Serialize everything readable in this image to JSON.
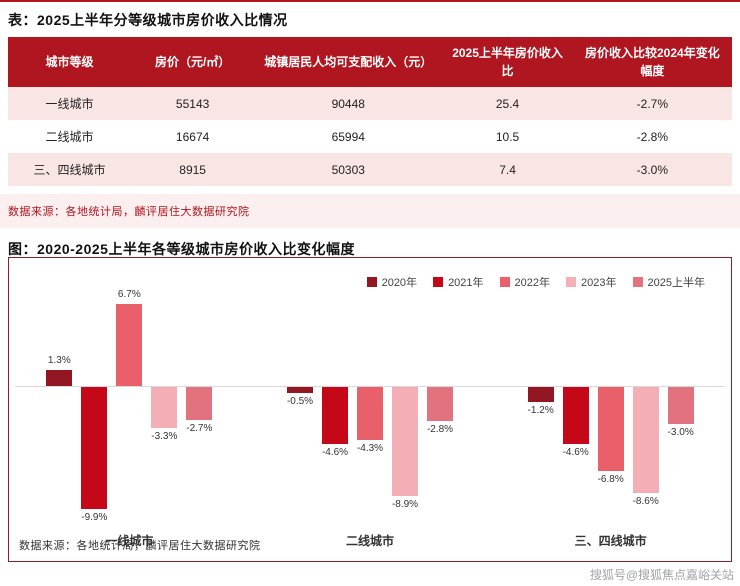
{
  "table_section": {
    "title": "表：2025上半年分等级城市房价收入比情况",
    "columns": [
      "城市等级",
      "房价（元/㎡）",
      "城镇居民人均可支配收入（元）",
      "2025上半年房价收入比",
      "房价收入比较2024年变化幅度"
    ],
    "rows": [
      [
        "一线城市",
        "55143",
        "90448",
        "25.4",
        "-2.7%"
      ],
      [
        "二线城市",
        "16674",
        "65994",
        "10.5",
        "-2.8%"
      ],
      [
        "三、四线城市",
        "8915",
        "50303",
        "7.4",
        "-3.0%"
      ]
    ],
    "source": "数据来源：各地统计局，麟评居住大数据研究院"
  },
  "chart_section": {
    "title": "图：2020-2025上半年各等级城市房价收入比变化幅度",
    "source": "数据来源：各地统计局，麟评居住大数据研究院"
  },
  "chart_data": {
    "type": "bar",
    "title": "2020-2025上半年各等级城市房价收入比变化幅度",
    "categories": [
      "一线城市",
      "二线城市",
      "三、四线城市"
    ],
    "series": [
      {
        "name": "2020年",
        "color": "#921722",
        "values": [
          1.3,
          -0.5,
          -1.2
        ]
      },
      {
        "name": "2021年",
        "color": "#C50818",
        "values": [
          -9.9,
          -4.6,
          -4.6
        ]
      },
      {
        "name": "2022年",
        "color": "#E9606B",
        "values": [
          6.7,
          -4.3,
          -6.8
        ]
      },
      {
        "name": "2023年",
        "color": "#F3AFB5",
        "values": [
          -3.3,
          -8.9,
          -8.6
        ]
      },
      {
        "name": "2025上半年",
        "color": "#E2737E",
        "values": [
          -2.7,
          -2.8,
          -3.0
        ]
      }
    ],
    "value_suffix": "%",
    "ylim": [
      -11,
      8
    ],
    "grid": false,
    "legend_position": "top-right"
  },
  "colors": {
    "accent_red": "#B01620",
    "row_stripe_pink": "#FAE5E5",
    "source_band_pink": "#FCEFEF",
    "chart_border": "#8C1F28",
    "zero_axis": "#D8D8D8",
    "watermark_gray": "#A3A3A3"
  },
  "watermark": "搜狐号@搜狐焦点嘉峪关站"
}
